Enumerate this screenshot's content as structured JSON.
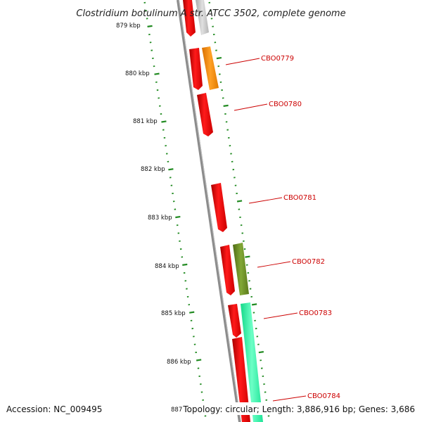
{
  "title": "Clostridium botulinum A str. ATCC 3502, complete genome",
  "footer": {
    "accession": "Accession: NC_009495",
    "summary": "Topology: circular; Length: 3,886,916 bp; Genes: 3,686"
  },
  "kbp_labels": [
    "879 kbp",
    "880 kbp",
    "881 kbp",
    "882 kbp",
    "883 kbp",
    "884 kbp",
    "885 kbp",
    "886 kbp",
    "887 kbp"
  ],
  "gene_labels": [
    "CBO0779",
    "CBO0780",
    "CBO0781",
    "CBO0782",
    "CBO0783",
    "CBO0784"
  ],
  "colors": {
    "backbone": "#8c8c8c",
    "forward_gene": "#ff0000",
    "gc_content": "#228b22",
    "cog_orange": "#ff8c00",
    "cog_olive": "#6b8e23",
    "cog_aquamarine": "#00ff9f",
    "cog_gray": "#c0c0c0",
    "label_red": "#cc0000"
  }
}
